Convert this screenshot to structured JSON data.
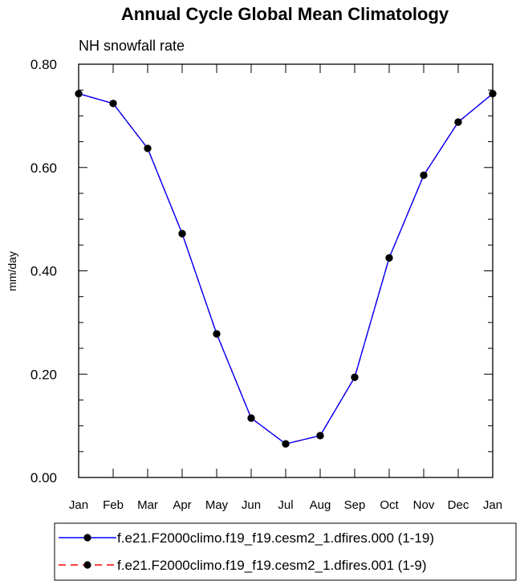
{
  "chart_data": {
    "type": "line",
    "title": "Annual Cycle Global Mean Climatology",
    "subtitle": "NH snowfall rate",
    "xlabel": "",
    "ylabel": "mm/day",
    "categories": [
      "Jan",
      "Feb",
      "Mar",
      "Apr",
      "May",
      "Jun",
      "Jul",
      "Aug",
      "Sep",
      "Oct",
      "Nov",
      "Dec",
      "Jan"
    ],
    "ylim": [
      0,
      0.8
    ],
    "yticks": [
      0.0,
      0.2,
      0.4,
      0.6,
      0.8
    ],
    "ytick_labels": [
      "0.00",
      "0.20",
      "0.40",
      "0.60",
      "0.80"
    ],
    "grid": false,
    "legend_position": "bottom",
    "series": [
      {
        "name": "f.e21.F2000climo.f19_f19.cesm2_1.dfires.000 (1-19)",
        "color": "#0000ff",
        "line_style": "solid",
        "marker": "filled-circle",
        "values": [
          0.743,
          0.724,
          0.637,
          0.472,
          0.278,
          0.115,
          0.065,
          0.081,
          0.194,
          0.425,
          0.585,
          0.688,
          0.743
        ]
      },
      {
        "name": "f.e21.F2000climo.f19_f19.cesm2_1.dfires.001 (1-9)",
        "color": "#ff0000",
        "line_style": "dashed",
        "marker": "filled-circle",
        "values": [
          0.743,
          0.724,
          0.637,
          0.472,
          0.278,
          0.115,
          0.065,
          0.081,
          0.194,
          0.425,
          0.585,
          0.688,
          0.743
        ]
      }
    ]
  }
}
